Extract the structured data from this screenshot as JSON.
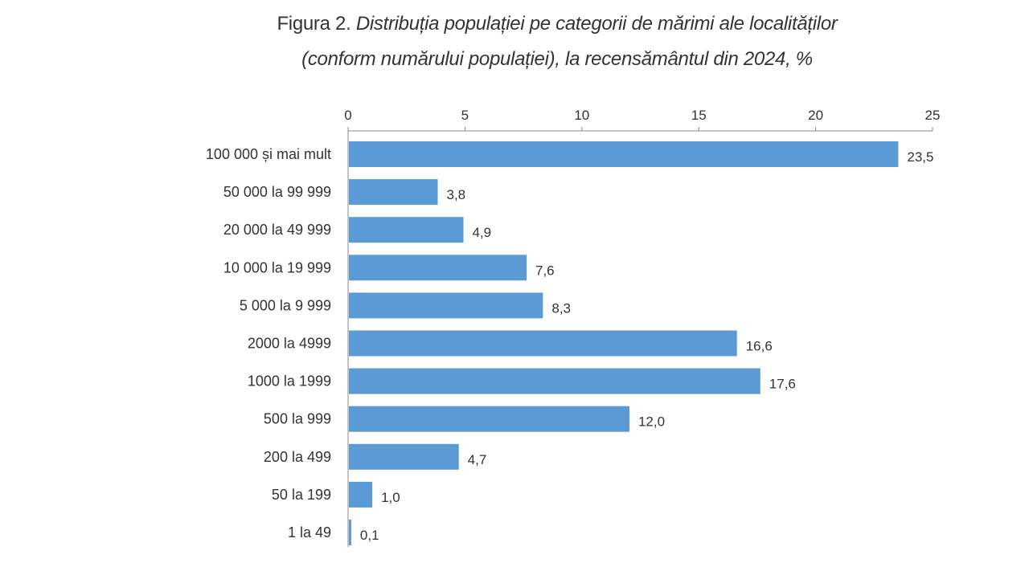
{
  "chart_data": {
    "type": "bar",
    "orientation": "horizontal",
    "title_prefix": "Figura 2.",
    "title_line1": "Distribuția populației pe categorii de mărimi ale localităților",
    "title_line2": "(conform numărului populației), la recensământul din 2024, %",
    "categories": [
      "100 000 și mai mult",
      "50 000 la 99 999",
      "20 000 la 49 999",
      "10 000 la 19 999",
      "5 000 la 9 999",
      "2000 la 4999",
      "1000 la 1999",
      "500 la 999",
      "200 la 499",
      "50 la 199",
      "1 la 49"
    ],
    "values": [
      23.5,
      3.8,
      4.9,
      7.6,
      8.3,
      16.6,
      17.6,
      12.0,
      4.7,
      1.0,
      0.1
    ],
    "value_labels": [
      "23,5",
      "3,8",
      "4,9",
      "7,6",
      "8,3",
      "16,6",
      "17,6",
      "12,0",
      "4,7",
      "1,0",
      "0,1"
    ],
    "xticks": [
      0,
      5,
      10,
      15,
      20,
      25
    ],
    "xlim": [
      0,
      25
    ],
    "axis_position": "top",
    "grid": false,
    "bar_color": "#5b9bd5"
  }
}
